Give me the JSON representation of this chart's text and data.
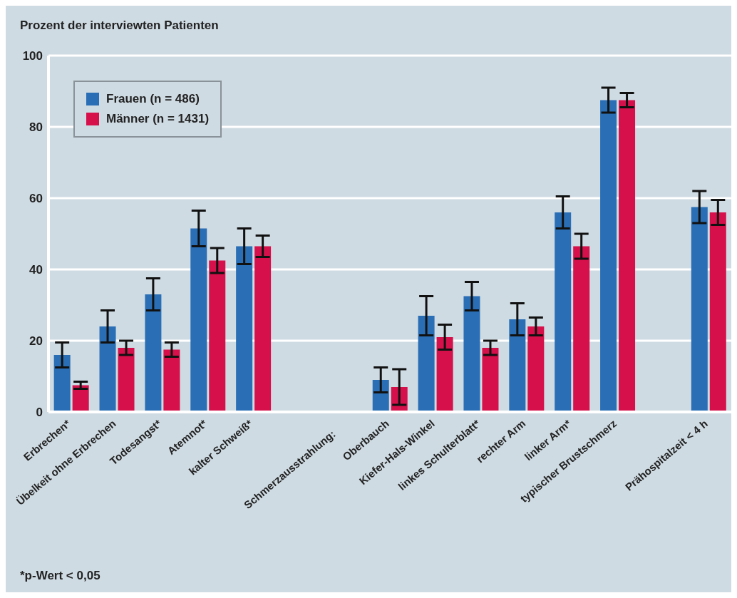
{
  "chart_data": {
    "type": "bar",
    "ylabel": "Prozent der interviewten Patienten",
    "categories": [
      "Erbrechen*",
      "Übelkeit ohne Erbrechen",
      "Todesangst*",
      "Atemnot*",
      "kalter Schweiß*",
      null,
      null,
      "Oberbauch",
      "Kiefer-Hals-Winkel",
      "linkes Schulterblatt*",
      "rechter Arm",
      "linker Arm*",
      "typischer Brustschmerz",
      null,
      "Prähospitalzeit < 4 h"
    ],
    "series": [
      {
        "name": "Frauen (n = 486)",
        "color": "#2a6fb5",
        "values": [
          16,
          24,
          33,
          51.5,
          46.5,
          null,
          null,
          9,
          27,
          32.5,
          26,
          56,
          87.5,
          null,
          57.5
        ],
        "errors": [
          3.5,
          4.5,
          4.5,
          5,
          5,
          null,
          null,
          3.5,
          5.5,
          4,
          4.5,
          4.5,
          3.5,
          null,
          4.5
        ]
      },
      {
        "name": "Männer (n = 1431)",
        "color": "#d6104a",
        "values": [
          7.5,
          18,
          17.5,
          42.5,
          46.5,
          null,
          null,
          7,
          21,
          18,
          24,
          46.5,
          87.5,
          null,
          56
        ],
        "errors": [
          1,
          2,
          2,
          3.5,
          3,
          null,
          null,
          5,
          3.5,
          2,
          2.5,
          3.5,
          2,
          null,
          3.5
        ]
      }
    ],
    "ylim": [
      0,
      100
    ],
    "yticks": [
      0,
      20,
      40,
      60,
      80,
      100
    ],
    "grid": "y",
    "legend": "top left",
    "annotations": [
      "Schmerzausstrahlung:",
      "*p-Wert < 0,05"
    ]
  }
}
